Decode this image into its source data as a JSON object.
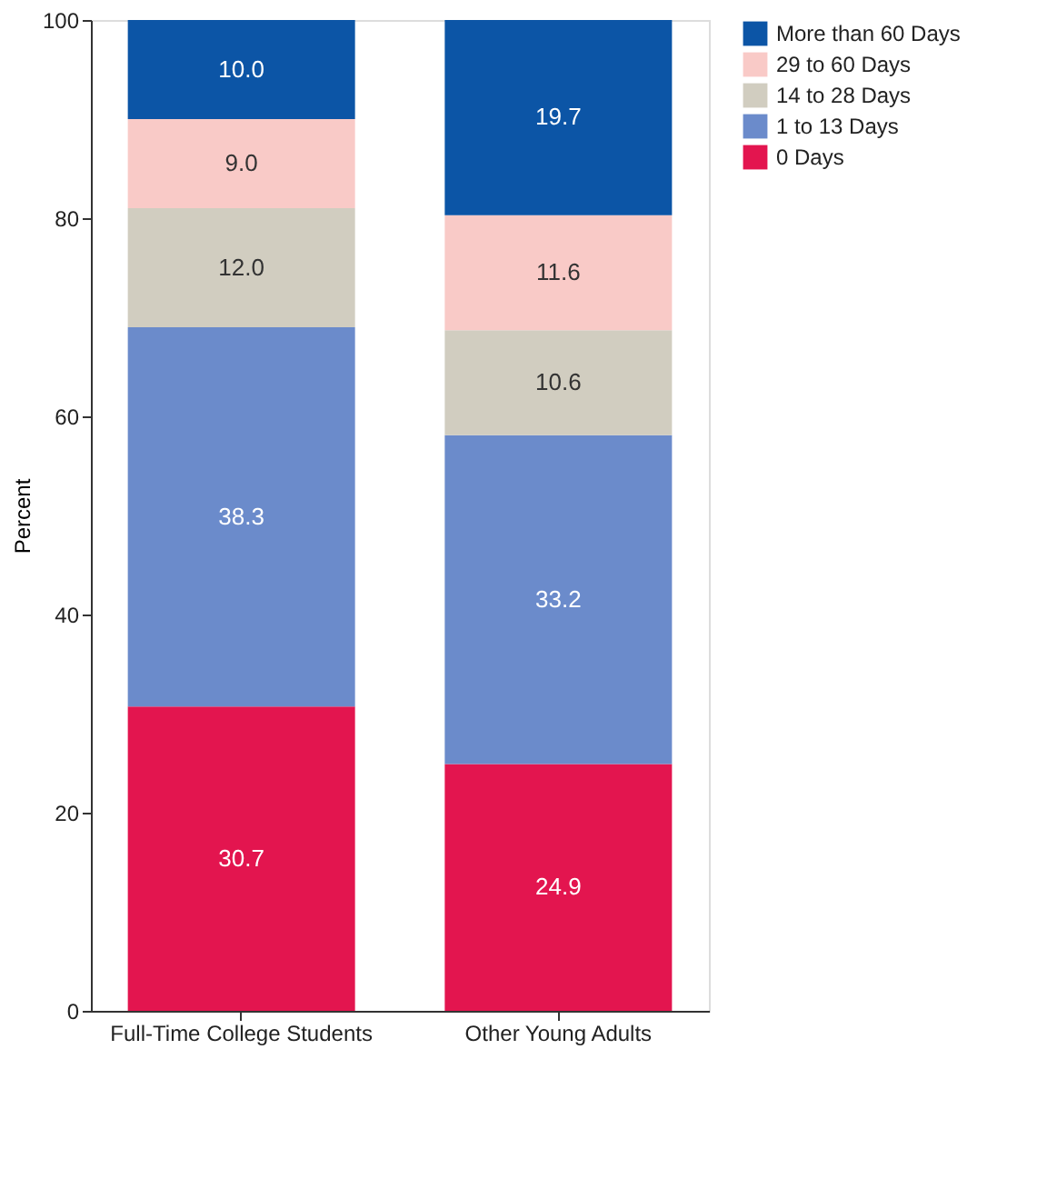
{
  "chart_data": {
    "type": "bar",
    "stacked": true,
    "ylabel": "Percent",
    "categories": [
      "Full-Time College Students",
      "Other Young Adults"
    ],
    "series": [
      {
        "name": "0 Days",
        "color": "#e3154f",
        "values": [
          30.7,
          24.9
        ],
        "value_labels": [
          "30.7",
          "24.9"
        ]
      },
      {
        "name": "1 to 13 Days",
        "color": "#6b8bcb",
        "values": [
          38.3,
          33.2
        ],
        "value_labels": [
          "38.3",
          "33.2"
        ]
      },
      {
        "name": "14 to 28 Days",
        "color": "#d1cdc0",
        "values": [
          12.0,
          10.6
        ],
        "value_labels": [
          "12.0",
          "10.6"
        ]
      },
      {
        "name": "29 to 60 Days",
        "color": "#f9cac7",
        "values": [
          9.0,
          11.6
        ],
        "value_labels": [
          "9.0",
          "11.6"
        ]
      },
      {
        "name": "More than 60 Days",
        "color": "#0c55a6",
        "values": [
          10.0,
          19.7
        ],
        "value_labels": [
          "10.0",
          "19.7"
        ]
      }
    ],
    "ylim": [
      0,
      100
    ],
    "yticks": [
      0,
      20,
      40,
      60,
      80,
      100
    ],
    "grid": false,
    "legend": "right"
  }
}
